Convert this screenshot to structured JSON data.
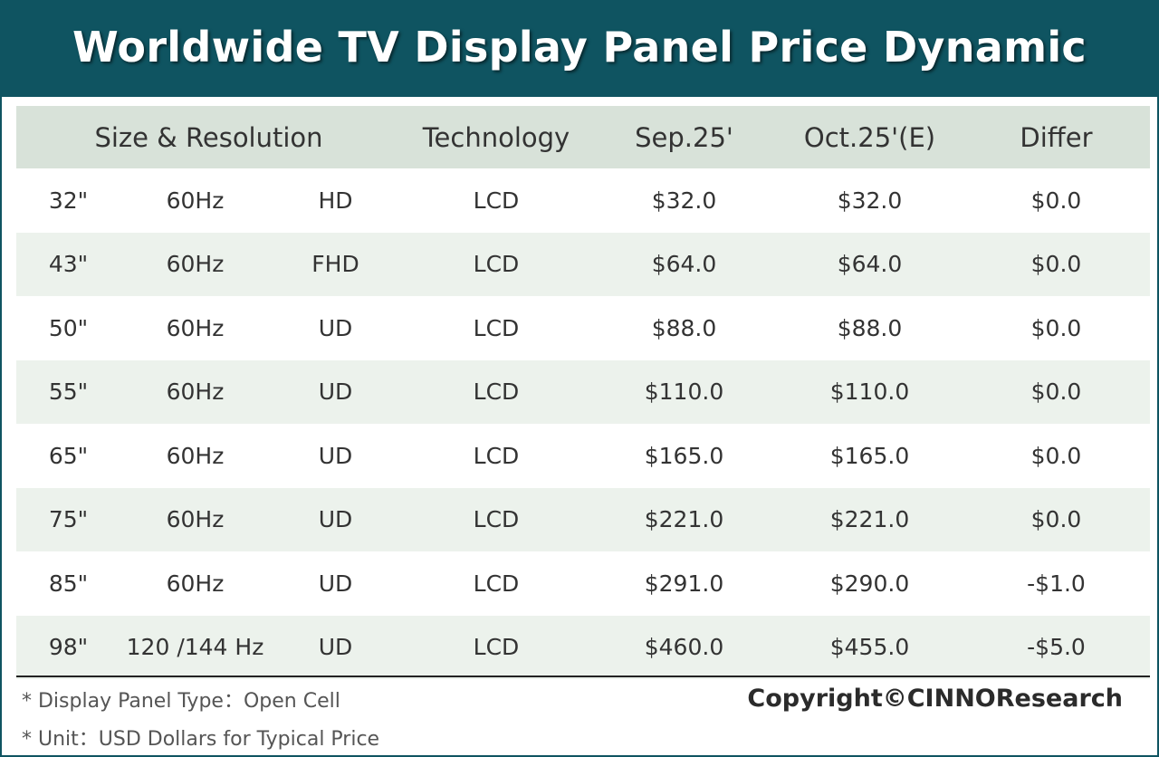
{
  "title": "Worldwide TV Display Panel Price Dynamic",
  "chart_data": {
    "type": "table",
    "title": "Worldwide TV Display Panel Price Dynamic",
    "columns": [
      "Size & Resolution",
      "Technology",
      "Sep.25'",
      "Oct.25'(E)",
      "Differ"
    ],
    "rows": [
      {
        "size": "32\"",
        "refresh": "60Hz",
        "resolution": "HD",
        "technology": "LCD",
        "sep": "$32.0",
        "oct": "$32.0",
        "differ": "$0.0"
      },
      {
        "size": "43\"",
        "refresh": "60Hz",
        "resolution": "FHD",
        "technology": "LCD",
        "sep": "$64.0",
        "oct": "$64.0",
        "differ": "$0.0"
      },
      {
        "size": "50\"",
        "refresh": "60Hz",
        "resolution": "UD",
        "technology": "LCD",
        "sep": "$88.0",
        "oct": "$88.0",
        "differ": "$0.0"
      },
      {
        "size": "55\"",
        "refresh": "60Hz",
        "resolution": "UD",
        "technology": "LCD",
        "sep": "$110.0",
        "oct": "$110.0",
        "differ": "$0.0"
      },
      {
        "size": "65\"",
        "refresh": "60Hz",
        "resolution": "UD",
        "technology": "LCD",
        "sep": "$165.0",
        "oct": "$165.0",
        "differ": "$0.0"
      },
      {
        "size": "75\"",
        "refresh": "60Hz",
        "resolution": "UD",
        "technology": "LCD",
        "sep": "$221.0",
        "oct": "$221.0",
        "differ": "$0.0"
      },
      {
        "size": "85\"",
        "refresh": "60Hz",
        "resolution": "UD",
        "technology": "LCD",
        "sep": "$291.0",
        "oct": "$290.0",
        "differ": "-$1.0"
      },
      {
        "size": "98\"",
        "refresh": "120 /144 Hz",
        "resolution": "UD",
        "technology": "LCD",
        "sep": "$460.0",
        "oct": "$455.0",
        "differ": "-$5.0"
      }
    ]
  },
  "notes": {
    "panel_type": "* Display Panel Type：Open Cell",
    "unit": "* Unit：USD Dollars for Typical Price"
  },
  "copyright": "Copyright©CINNOResearch",
  "colors": {
    "header_band": "#0f5461",
    "table_header": "#d8e2d9",
    "row_alt": "#ecf2ec"
  }
}
